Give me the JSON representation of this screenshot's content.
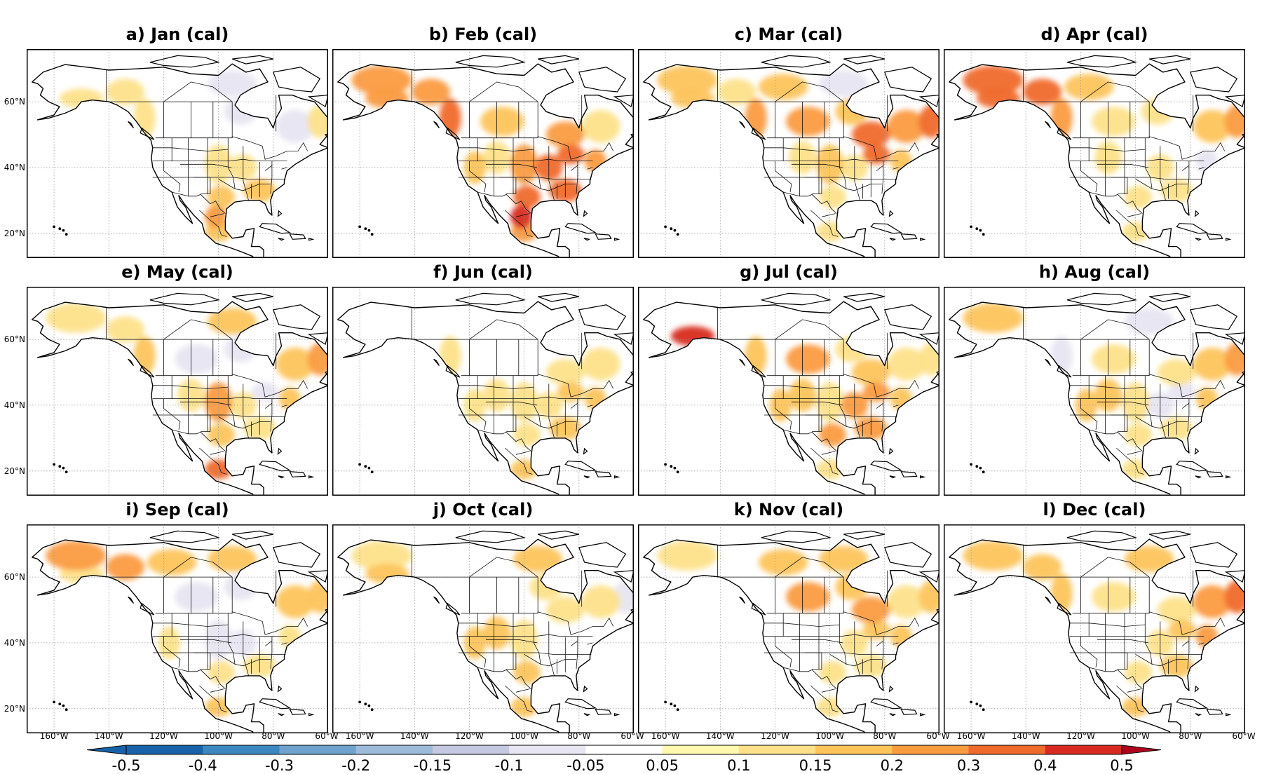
{
  "panels": [
    {
      "title": "a) Jan (cal)",
      "month": "Jan",
      "warm_regions": [
        [
          "ne-mexico",
          0.2
        ],
        [
          "se-us",
          0.15
        ],
        [
          "texas",
          0.15
        ],
        [
          "mexico",
          0.15
        ],
        [
          "alaska-south",
          0.1
        ],
        [
          "bc-coast",
          0.1
        ],
        [
          "midwest",
          0.1
        ],
        [
          "great-plains",
          0.1
        ],
        [
          "labrador",
          0.1
        ],
        [
          "yukon",
          0.1
        ]
      ],
      "cool_regions": [
        [
          "hudson",
          -0.05
        ],
        [
          "nunavut",
          -0.05
        ],
        [
          "quebec",
          -0.05
        ]
      ]
    },
    {
      "title": "b) Feb (cal)",
      "month": "Feb",
      "warm_regions": [
        [
          "ne-mexico",
          0.4
        ],
        [
          "texas",
          0.3
        ],
        [
          "se-us",
          0.3
        ],
        [
          "midwest",
          0.3
        ],
        [
          "great-lakes",
          0.3
        ],
        [
          "bc-coast",
          0.3
        ],
        [
          "alaska-north",
          0.2
        ],
        [
          "yukon",
          0.2
        ],
        [
          "alaska-south",
          0.2
        ],
        [
          "mexico",
          0.2
        ],
        [
          "great-plains",
          0.2
        ],
        [
          "northeast",
          0.2
        ],
        [
          "ontario",
          0.2
        ],
        [
          "us-west",
          0.15
        ],
        [
          "prairies",
          0.15
        ],
        [
          "quebec",
          0.1
        ],
        [
          "rockies",
          0.1
        ]
      ],
      "cool_regions": []
    },
    {
      "title": "c) Mar (cal)",
      "month": "Mar",
      "warm_regions": [
        [
          "labrador",
          0.3
        ],
        [
          "ontario",
          0.3
        ],
        [
          "great-lakes",
          0.3
        ],
        [
          "prairies",
          0.2
        ],
        [
          "quebec",
          0.2
        ],
        [
          "bc-coast",
          0.2
        ],
        [
          "nw-territories",
          0.15
        ],
        [
          "alaska-north",
          0.15
        ],
        [
          "alaska-south",
          0.15
        ],
        [
          "great-plains",
          0.15
        ],
        [
          "hudson",
          0.15
        ],
        [
          "northeast",
          0.15
        ],
        [
          "yukon",
          0.1
        ],
        [
          "midwest",
          0.1
        ],
        [
          "rockies",
          0.1
        ],
        [
          "mexico",
          0.1
        ],
        [
          "texas",
          0.1
        ]
      ],
      "cool_regions": [
        [
          "nunavut",
          -0.05
        ]
      ]
    },
    {
      "title": "d) Apr (cal)",
      "month": "Apr",
      "warm_regions": [
        [
          "alaska-south",
          0.3
        ],
        [
          "alaska-north",
          0.3
        ],
        [
          "yukon",
          0.3
        ],
        [
          "bc-coast",
          0.2
        ],
        [
          "labrador",
          0.2
        ],
        [
          "nw-territories",
          0.15
        ],
        [
          "quebec",
          0.15
        ],
        [
          "prairies",
          0.1
        ],
        [
          "mexico",
          0.1
        ],
        [
          "se-us",
          0.1
        ],
        [
          "midwest",
          0.1
        ],
        [
          "texas",
          0.1
        ],
        [
          "rockies",
          0.1
        ],
        [
          "hudson",
          0.1
        ]
      ],
      "cool_regions": [
        [
          "northeast",
          -0.05
        ]
      ]
    },
    {
      "title": "e) May (cal)",
      "month": "May",
      "warm_regions": [
        [
          "mexico",
          0.3
        ],
        [
          "labrador",
          0.2
        ],
        [
          "great-plains",
          0.2
        ],
        [
          "quebec",
          0.15
        ],
        [
          "bc-coast",
          0.15
        ],
        [
          "nunavut",
          0.15
        ],
        [
          "northeast",
          0.15
        ],
        [
          "texas",
          0.15
        ],
        [
          "se-us",
          0.1
        ],
        [
          "rockies",
          0.1
        ],
        [
          "alaska-north",
          0.1
        ],
        [
          "yukon",
          0.1
        ],
        [
          "midwest",
          0.1
        ]
      ],
      "cool_regions": [
        [
          "prairies",
          -0.05
        ],
        [
          "hudson",
          -0.05
        ],
        [
          "great-lakes",
          -0.05
        ]
      ]
    },
    {
      "title": "f) Jun (cal)",
      "month": "Jun",
      "warm_regions": [
        [
          "northeast",
          0.15
        ],
        [
          "se-us",
          0.15
        ],
        [
          "great-lakes",
          0.15
        ],
        [
          "mexico",
          0.15
        ],
        [
          "rockies",
          0.1
        ],
        [
          "bc-coast",
          0.1
        ],
        [
          "us-west",
          0.1
        ],
        [
          "midwest",
          0.1
        ],
        [
          "quebec",
          0.1
        ],
        [
          "ontario",
          0.1
        ],
        [
          "texas",
          0.1
        ],
        [
          "great-plains",
          0.1
        ]
      ],
      "cool_regions": []
    },
    {
      "title": "g) Jul (cal)",
      "month": "Jul",
      "warm_regions": [
        [
          "alaska-south",
          0.4
        ],
        [
          "midwest",
          0.2
        ],
        [
          "se-us",
          0.2
        ],
        [
          "prairies",
          0.2
        ],
        [
          "great-lakes",
          0.2
        ],
        [
          "texas",
          0.2
        ],
        [
          "ontario",
          0.15
        ],
        [
          "northeast",
          0.15
        ],
        [
          "rockies",
          0.15
        ],
        [
          "bc-coast",
          0.15
        ],
        [
          "us-west",
          0.15
        ],
        [
          "quebec",
          0.1
        ],
        [
          "great-plains",
          0.1
        ],
        [
          "hudson",
          0.1
        ],
        [
          "labrador",
          0.1
        ],
        [
          "mexico",
          0.1
        ]
      ],
      "cool_regions": []
    },
    {
      "title": "h) Aug (cal)",
      "month": "Aug",
      "warm_regions": [
        [
          "labrador",
          0.2
        ],
        [
          "quebec",
          0.15
        ],
        [
          "alaska-north",
          0.15
        ],
        [
          "rockies",
          0.15
        ],
        [
          "us-west",
          0.15
        ],
        [
          "prairies",
          0.1
        ],
        [
          "ontario",
          0.1
        ],
        [
          "northeast",
          0.15
        ],
        [
          "se-us",
          0.1
        ],
        [
          "mexico",
          0.1
        ],
        [
          "great-plains",
          0.1
        ],
        [
          "texas",
          0.1
        ]
      ],
      "cool_regions": [
        [
          "great-lakes",
          -0.05
        ],
        [
          "midwest",
          -0.05
        ],
        [
          "bc-coast",
          -0.05
        ],
        [
          "nunavut",
          -0.05
        ]
      ]
    },
    {
      "title": "i) Sep (cal)",
      "month": "Sep",
      "warm_regions": [
        [
          "alaska-north",
          0.2
        ],
        [
          "yukon",
          0.2
        ],
        [
          "nw-territories",
          0.15
        ],
        [
          "nunavut",
          0.15
        ],
        [
          "quebec",
          0.15
        ],
        [
          "labrador",
          0.15
        ],
        [
          "alaska-south",
          0.1
        ],
        [
          "mexico",
          0.15
        ],
        [
          "northeast",
          0.1
        ],
        [
          "se-us",
          0.1
        ],
        [
          "us-west",
          0.1
        ],
        [
          "texas",
          0.1
        ]
      ],
      "cool_regions": [
        [
          "great-plains",
          -0.05
        ],
        [
          "prairies",
          -0.05
        ],
        [
          "midwest",
          -0.05
        ],
        [
          "hudson",
          -0.05
        ]
      ]
    },
    {
      "title": "j) Oct (cal)",
      "month": "Oct",
      "warm_regions": [
        [
          "us-west",
          0.15
        ],
        [
          "texas",
          0.15
        ],
        [
          "mexico",
          0.15
        ],
        [
          "alaska-south",
          0.15
        ],
        [
          "nunavut",
          0.15
        ],
        [
          "rockies",
          0.15
        ],
        [
          "alaska-north",
          0.1
        ],
        [
          "ontario",
          0.1
        ],
        [
          "hudson",
          0.1
        ],
        [
          "great-plains",
          0.1
        ],
        [
          "quebec",
          0.1
        ]
      ],
      "cool_regions": [
        [
          "labrador",
          -0.05
        ]
      ]
    },
    {
      "title": "k) Nov (cal)",
      "month": "Nov",
      "warm_regions": [
        [
          "prairies",
          0.2
        ],
        [
          "ontario",
          0.2
        ],
        [
          "nw-territories",
          0.15
        ],
        [
          "nunavut",
          0.15
        ],
        [
          "hudson",
          0.15
        ],
        [
          "northeast",
          0.15
        ],
        [
          "labrador",
          0.15
        ],
        [
          "quebec",
          0.1
        ],
        [
          "great-lakes",
          0.15
        ],
        [
          "midwest",
          0.1
        ],
        [
          "texas",
          0.1
        ],
        [
          "alaska-north",
          0.1
        ],
        [
          "mexico",
          0.1
        ],
        [
          "se-us",
          0.1
        ]
      ],
      "cool_regions": []
    },
    {
      "title": "l) Dec (cal)",
      "month": "Dec",
      "warm_regions": [
        [
          "labrador",
          0.3
        ],
        [
          "quebec",
          0.2
        ],
        [
          "northeast",
          0.2
        ],
        [
          "yukon",
          0.15
        ],
        [
          "alaska-north",
          0.15
        ],
        [
          "nunavut",
          0.15
        ],
        [
          "bc-coast",
          0.15
        ],
        [
          "great-lakes",
          0.15
        ],
        [
          "se-us",
          0.15
        ],
        [
          "midwest",
          0.1
        ],
        [
          "texas",
          0.1
        ],
        [
          "mexico",
          0.15
        ],
        [
          "prairies",
          0.1
        ],
        [
          "ontario",
          0.1
        ]
      ],
      "cool_regions": []
    }
  ],
  "lat_labels": [
    "60°N",
    "40°N",
    "20°N"
  ],
  "lon_labels": [
    "160°W",
    "140°W",
    "120°W",
    "100°W",
    "80°W",
    "60°W"
  ],
  "colorbar": {
    "levels": [
      "-0.5",
      "-0.4",
      "-0.3",
      "-0.2",
      "-0.15",
      "-0.1",
      "-0.05",
      "0.05",
      "0.1",
      "0.15",
      "0.2",
      "0.3",
      "0.4",
      "0.5"
    ],
    "colors": [
      "#1762a9",
      "#3b88c0",
      "#6fa3ce",
      "#9ebbdc",
      "#c4c8e1",
      "#e7e5f1",
      "#ffffff",
      "#fff9b0",
      "#fde18a",
      "#fdc45c",
      "#fb9b40",
      "#f06a2c",
      "#d82a20",
      "#b0001e"
    ],
    "min_color": "#1762a9",
    "max_color": "#b0001e"
  }
}
